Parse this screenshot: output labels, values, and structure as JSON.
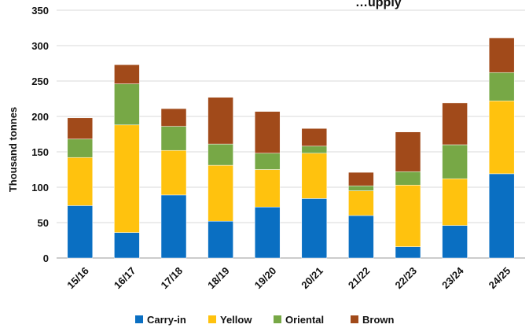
{
  "chart_data": {
    "type": "bar",
    "stacked": true,
    "title": "…upply",
    "xlabel": "",
    "ylabel": "Thousand tonnes",
    "ylim": [
      0,
      350
    ],
    "yticks": [
      0,
      50,
      100,
      150,
      200,
      250,
      300,
      350
    ],
    "grid": true,
    "legend_position": "bottom",
    "categories": [
      "15/16",
      "16/17",
      "17/18",
      "18/19",
      "19/20",
      "20/21",
      "21/22",
      "22/23",
      "23/24",
      "24/25"
    ],
    "series": [
      {
        "name": "Carry-in",
        "color": "#0A6FC2",
        "values": [
          74,
          36,
          89,
          52,
          72,
          84,
          60,
          16,
          46,
          119
        ]
      },
      {
        "name": "Yellow",
        "color": "#FFC20E",
        "values": [
          68,
          152,
          63,
          79,
          53,
          64,
          35,
          87,
          66,
          103
        ]
      },
      {
        "name": "Oriental",
        "color": "#77A846",
        "values": [
          26,
          58,
          34,
          30,
          23,
          10,
          7,
          19,
          48,
          40
        ]
      },
      {
        "name": "Brown",
        "color": "#A14A1A",
        "values": [
          30,
          27,
          25,
          66,
          59,
          25,
          19,
          56,
          59,
          49
        ]
      }
    ]
  }
}
